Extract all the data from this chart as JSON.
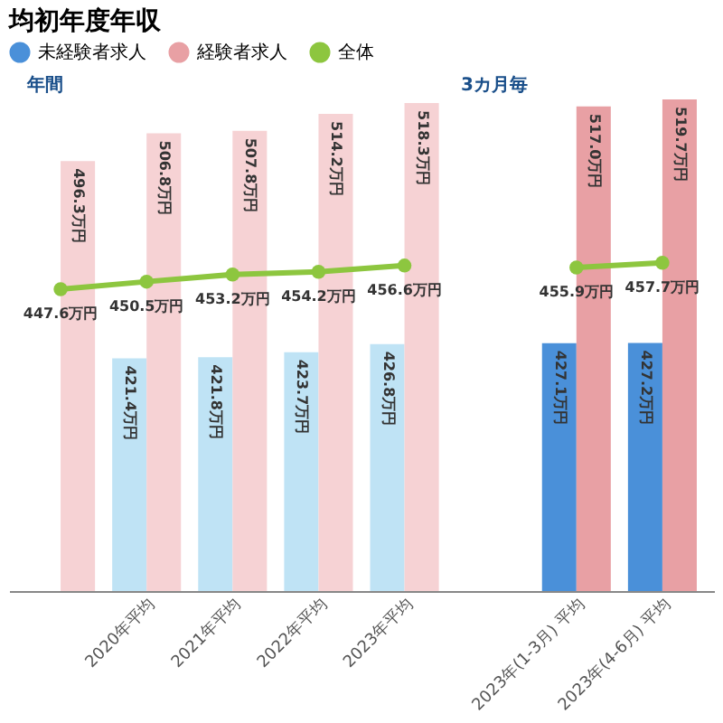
{
  "chart_data": {
    "type": "bar",
    "title": "均初年度年収",
    "categories": [
      null,
      "2020年平均",
      "2021年平均",
      "2022年平均",
      "2023年平均",
      null,
      "2023年(1-3月) 平均",
      "2023年(4-6月) 平均"
    ],
    "series": [
      {
        "name": "未経験者求人",
        "color": "#4a90d9",
        "colors": [
          "#bfe3f5",
          "#bfe3f5",
          "#bfe3f5",
          "#bfe3f5",
          "#bfe3f5",
          null,
          "#4a90d9",
          "#4a90d9"
        ],
        "values": [
          null,
          421.4,
          421.8,
          423.7,
          426.8,
          null,
          427.1,
          427.2
        ],
        "value_labels": [
          null,
          "421.4万円",
          "421.8万円",
          "423.7万円",
          "426.8万円",
          null,
          "427.1万円",
          "427.2万円"
        ]
      },
      {
        "name": "経験者求人",
        "color": "#e8a0a4",
        "colors": [
          "#f6d2d4",
          "#f6d2d4",
          "#f6d2d4",
          "#f6d2d4",
          "#f6d2d4",
          null,
          "#e8a0a4",
          "#e8a0a4"
        ],
        "values": [
          496.3,
          506.8,
          507.8,
          514.2,
          518.3,
          null,
          517.0,
          519.7
        ],
        "value_labels": [
          "496.3万円",
          "506.8万円",
          "507.8万円",
          "514.2万円",
          "518.3万円",
          null,
          "517.0万円",
          "519.7万円"
        ]
      },
      {
        "name": "全体",
        "type": "line",
        "color": "#8dc63f",
        "values": [
          447.6,
          450.5,
          453.2,
          454.2,
          456.6,
          null,
          455.9,
          457.7
        ],
        "value_labels": [
          "447.6万円",
          "450.5万円",
          "453.2万円",
          "454.2万円",
          "456.6万円",
          null,
          "455.9万円",
          "457.7万円"
        ]
      }
    ],
    "ylim": [
      333,
      519.7
    ],
    "legend": "top",
    "marker": "circle",
    "annotations": [
      "年間",
      "3カ月毎"
    ]
  }
}
